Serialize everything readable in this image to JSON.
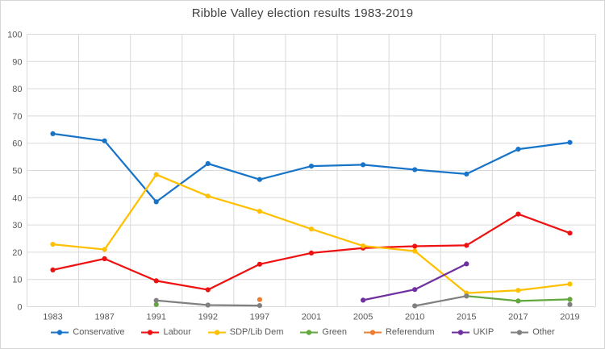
{
  "chart_data": {
    "type": "line",
    "title": "Ribble Valley election results 1983-2019",
    "categories": [
      "1983",
      "1987",
      "1991",
      "1992",
      "1997",
      "2001",
      "2005",
      "2010",
      "2015",
      "2017",
      "2019"
    ],
    "series": [
      {
        "name": "Conservative",
        "color": "#1874c8",
        "values": [
          63.5,
          60.9,
          38.5,
          52.5,
          46.7,
          51.6,
          52.1,
          50.3,
          48.7,
          57.8,
          60.3
        ]
      },
      {
        "name": "Labour",
        "color": "#ee1111",
        "values": [
          13.5,
          17.6,
          9.5,
          6.2,
          15.6,
          19.7,
          21.5,
          22.2,
          22.5,
          34.0,
          27.0
        ]
      },
      {
        "name": "SDP/Lib Dem",
        "color": "#ffc000",
        "values": [
          22.9,
          21.0,
          48.5,
          40.6,
          35.0,
          28.5,
          22.3,
          20.4,
          5.0,
          6.0,
          8.3
        ]
      },
      {
        "name": "Green",
        "color": "#62a83e",
        "values": [
          null,
          null,
          0.8,
          null,
          null,
          null,
          null,
          null,
          3.9,
          2.1,
          2.7
        ]
      },
      {
        "name": "Referendum",
        "color": "#ed7d31",
        "values": [
          null,
          null,
          null,
          null,
          2.6,
          null,
          null,
          null,
          null,
          null,
          null
        ]
      },
      {
        "name": "UKIP",
        "color": "#7030a0",
        "values": [
          null,
          null,
          null,
          null,
          null,
          null,
          2.4,
          6.3,
          15.7,
          null,
          null
        ]
      },
      {
        "name": "Other",
        "color": "#808080",
        "values": [
          null,
          null,
          2.3,
          0.6,
          0.4,
          null,
          null,
          0.3,
          3.9,
          null,
          0.8
        ]
      }
    ],
    "xlabel": "",
    "ylabel": "",
    "ylim": [
      0,
      100
    ],
    "ytick_step": 10,
    "grid": true,
    "legend_position": "bottom",
    "grid_color": "#d9d9d9",
    "axis_text_color": "#595959",
    "title_color": "#404040"
  }
}
